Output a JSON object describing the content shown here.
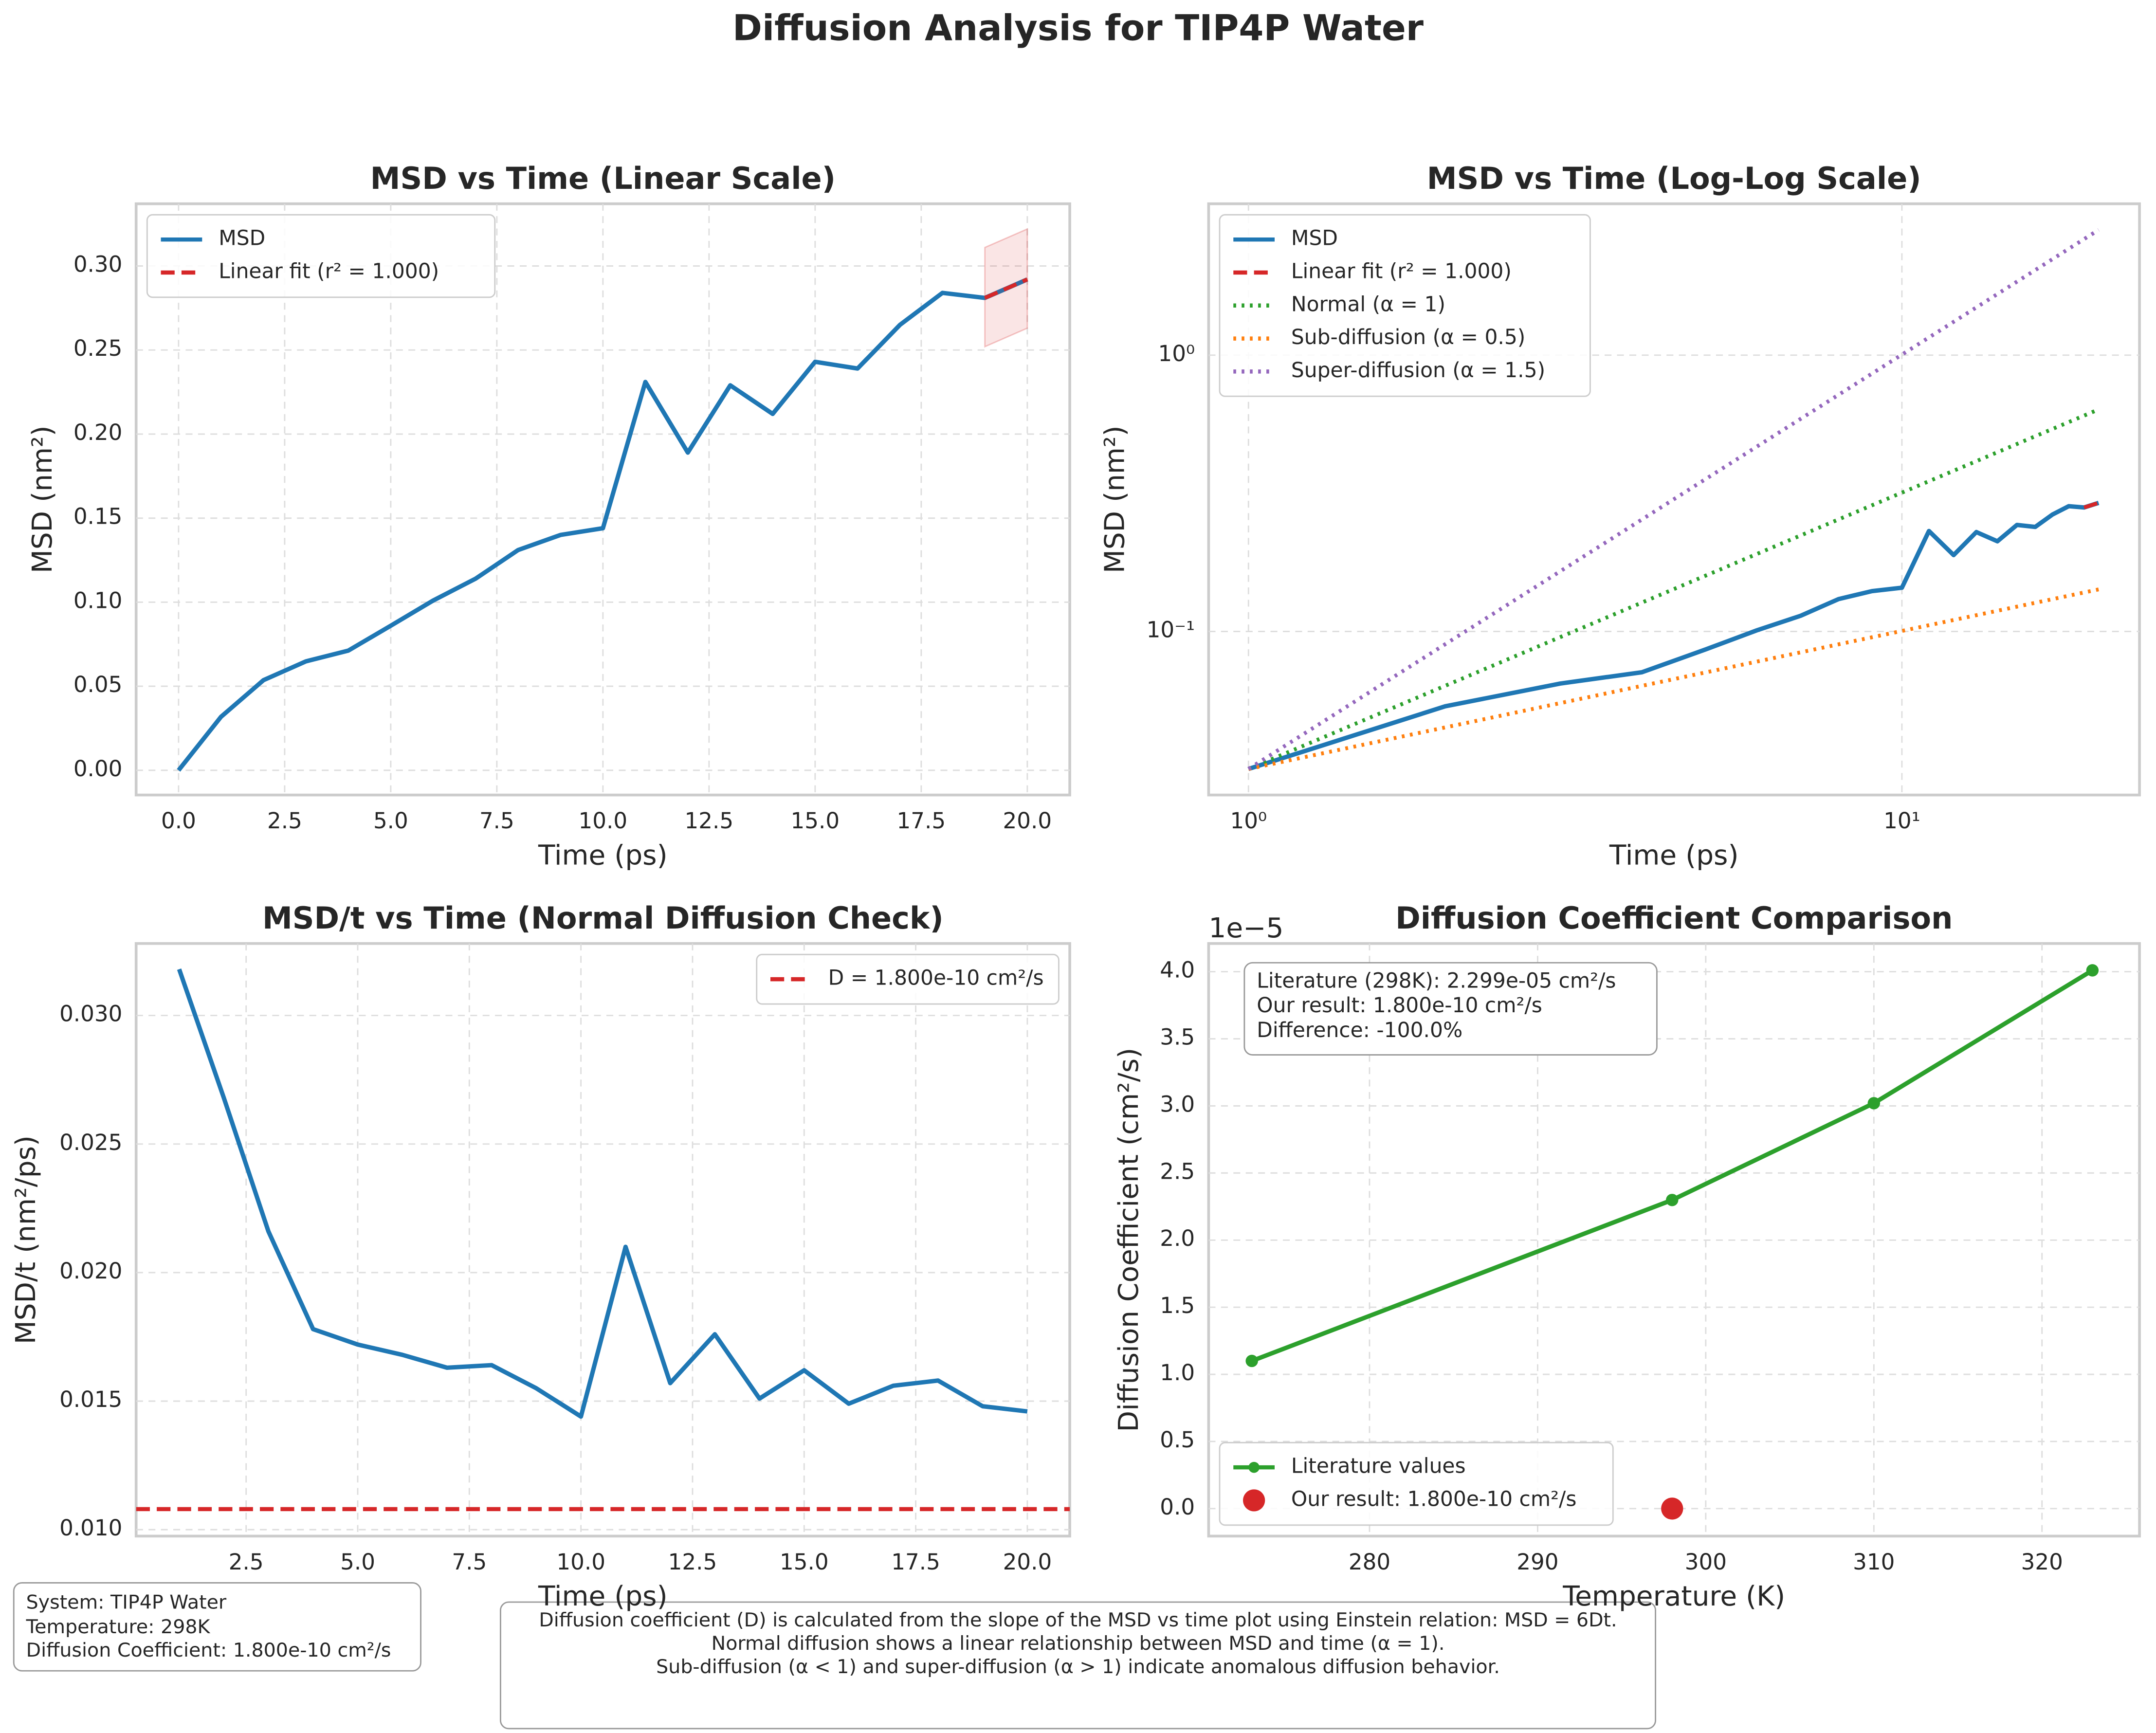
{
  "title": "Diffusion Analysis for TIP4P Water",
  "chart_data": [
    {
      "type": "line",
      "title": "MSD vs Time (Linear Scale)",
      "xlabel": "Time (ps)",
      "ylabel": "MSD (nm²)",
      "xlim": [
        -1,
        21
      ],
      "ylim": [
        -0.0147,
        0.337
      ],
      "xticks": [
        {
          "value": 0,
          "label": "0.0"
        },
        2.5,
        {
          "value": 5,
          "label": "5.0"
        },
        7.5,
        {
          "value": 10,
          "label": "10.0"
        },
        12.5,
        {
          "value": 15,
          "label": "15.0"
        },
        17.5,
        {
          "value": 20,
          "label": "20.0"
        }
      ],
      "yticks": [
        {
          "value": 0,
          "label": "0.00"
        },
        {
          "value": 0.05,
          "label": "0.05"
        },
        {
          "value": 0.1,
          "label": "0.10"
        },
        {
          "value": 0.15,
          "label": "0.15"
        },
        {
          "value": 0.2,
          "label": "0.20"
        },
        {
          "value": 0.25,
          "label": "0.25"
        },
        {
          "value": 0.3,
          "label": "0.30"
        }
      ],
      "grid": true,
      "legend": "upper-left",
      "series": [
        {
          "name": "MSD",
          "color": "#1f77b4",
          "style": "solid",
          "x": [
            0,
            1,
            2,
            3,
            4,
            5,
            6,
            7,
            8,
            9,
            10,
            11,
            12,
            13,
            14,
            15,
            16,
            17,
            18,
            19,
            20
          ],
          "values": [
            0,
            0.0318,
            0.0536,
            0.0648,
            0.0712,
            0.086,
            0.101,
            0.114,
            0.131,
            0.14,
            0.144,
            0.231,
            0.189,
            0.229,
            0.212,
            0.243,
            0.239,
            0.265,
            0.284,
            0.281,
            0.292
          ]
        },
        {
          "name": "Linear fit (r² = 1.000)",
          "color": "#d62728",
          "style": "dashed",
          "x": [
            19,
            20
          ],
          "values": [
            0.281,
            0.292
          ],
          "band_lower": [
            0.252,
            0.263
          ],
          "band_upper": [
            0.311,
            0.322
          ]
        }
      ]
    },
    {
      "type": "line",
      "title": "MSD vs Time (Log-Log Scale)",
      "xlabel": "Time (ps)",
      "ylabel": "MSD (nm²)",
      "xscale": "log",
      "yscale": "log",
      "xlim": [
        0.869,
        23.1
      ],
      "ylim": [
        0.0256,
        3.53
      ],
      "xticks": [
        {
          "value": 1,
          "label": "10⁰"
        },
        {
          "value": 10,
          "label": "10¹"
        }
      ],
      "yticks": [
        {
          "value": 0.1,
          "label": "10⁻¹"
        },
        {
          "value": 1,
          "label": "10⁰"
        }
      ],
      "grid": true,
      "legend": "upper-left",
      "series": [
        {
          "name": "MSD",
          "color": "#1f77b4",
          "style": "solid",
          "x": [
            1,
            2,
            3,
            4,
            5,
            6,
            7,
            8,
            9,
            10,
            11,
            12,
            13,
            14,
            15,
            16,
            17,
            18,
            19,
            20
          ],
          "values": [
            0.0318,
            0.0536,
            0.0648,
            0.0712,
            0.086,
            0.101,
            0.114,
            0.131,
            0.14,
            0.144,
            0.231,
            0.189,
            0.229,
            0.212,
            0.243,
            0.239,
            0.265,
            0.284,
            0.281,
            0.292
          ]
        },
        {
          "name": "Linear fit (r² = 1.000)",
          "color": "#d62728",
          "style": "dashed",
          "x": [
            19,
            20
          ],
          "values": [
            0.281,
            0.292
          ]
        },
        {
          "name": "Normal (α = 1)",
          "color": "#2ca02c",
          "style": "dotted",
          "x": [
            1,
            20
          ],
          "values": [
            0.0318,
            0.636
          ]
        },
        {
          "name": "Sub-diffusion (α = 0.5)",
          "color": "#ff7f0e",
          "style": "dotted",
          "x": [
            1,
            20
          ],
          "values": [
            0.0318,
            0.142
          ]
        },
        {
          "name": "Super-diffusion (α = 1.5)",
          "color": "#9467bd",
          "style": "dotted",
          "x": [
            1,
            20
          ],
          "values": [
            0.0318,
            2.84
          ]
        }
      ]
    },
    {
      "type": "line",
      "title": "MSD/t vs Time (Normal Diffusion Check)",
      "xlabel": "Time (ps)",
      "ylabel": "MSD/t (nm²/ps)",
      "xlim": [
        0.036,
        20.95
      ],
      "ylim": [
        0.00975,
        0.0328
      ],
      "xticks": [
        2.5,
        {
          "value": 5,
          "label": "5.0"
        },
        7.5,
        {
          "value": 10,
          "label": "10.0"
        },
        12.5,
        {
          "value": 15,
          "label": "15.0"
        },
        17.5,
        {
          "value": 20,
          "label": "20.0"
        }
      ],
      "yticks": [
        {
          "value": 0.01,
          "label": "0.010"
        },
        0.015,
        {
          "value": 0.02,
          "label": "0.020"
        },
        0.025,
        {
          "value": 0.03,
          "label": "0.030"
        }
      ],
      "grid": true,
      "legend": "upper-right",
      "series": [
        {
          "name": null,
          "color": "#1f77b4",
          "style": "solid",
          "x": [
            1,
            2,
            3,
            4,
            5,
            6,
            7,
            8,
            9,
            10,
            11,
            12,
            13,
            14,
            15,
            16,
            17,
            18,
            19,
            20
          ],
          "values": [
            0.0318,
            0.0268,
            0.0216,
            0.0178,
            0.0172,
            0.0168,
            0.0163,
            0.0164,
            0.0155,
            0.0144,
            0.021,
            0.0157,
            0.0176,
            0.0151,
            0.0162,
            0.0149,
            0.0156,
            0.0158,
            0.0148,
            0.0146
          ]
        },
        {
          "name": "D = 1.800e-10 cm²/s",
          "color": "#d62728",
          "style": "dashed",
          "kind": "hline",
          "values": [
            0.0108
          ]
        }
      ]
    },
    {
      "type": "line",
      "title": "Diffusion Coefficient Comparison",
      "xlabel": "Temperature (K)",
      "ylabel": "Diffusion Coefficient (cm²/s)",
      "y_offset_label": "1e−5",
      "xlim": [
        270.43,
        325.8
      ],
      "ylim": [
        -0.205,
        4.21
      ],
      "xticks": [
        280,
        290,
        300,
        310,
        320
      ],
      "yticks": [
        {
          "value": 0,
          "label": "0.0"
        },
        0.5,
        {
          "value": 1,
          "label": "1.0"
        },
        1.5,
        {
          "value": 2,
          "label": "2.0"
        },
        2.5,
        {
          "value": 3,
          "label": "3.0"
        },
        3.5,
        {
          "value": 4,
          "label": "4.0"
        }
      ],
      "grid": true,
      "legend": "lower-left",
      "annotation": [
        "Literature (298K): 2.299e-05 cm²/s",
        "Our result: 1.800e-10 cm²/s",
        "Difference: -100.0%"
      ],
      "series": [
        {
          "name": "Literature values",
          "color": "#2ca02c",
          "style": "solid",
          "marker": true,
          "x": [
            273,
            298,
            310,
            323
          ],
          "values": [
            1.1,
            2.299,
            3.02,
            4.01
          ]
        },
        {
          "name": "Our result: 1.800e-10 cm²/s",
          "color": "#d62728",
          "kind": "scatter",
          "x": [
            298
          ],
          "values": [
            1.8e-05
          ]
        }
      ]
    }
  ],
  "info_box": [
    "System: TIP4P Water",
    "Temperature: 298K",
    "Diffusion Coefficient: 1.800e-10 cm²/s"
  ],
  "note": [
    "Diffusion coefficient (D) is calculated from the slope of the MSD vs time plot using Einstein relation: MSD = 6Dt.",
    "Normal diffusion shows a linear relationship between MSD and time (α = 1).",
    "Sub-diffusion (α < 1) and super-diffusion (α > 1) indicate anomalous diffusion behavior."
  ]
}
